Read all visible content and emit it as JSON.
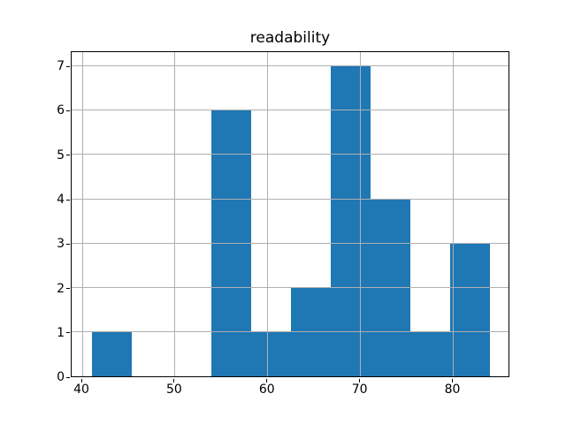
{
  "chart_data": {
    "type": "bar",
    "subtype": "histogram",
    "title": "readability",
    "xlabel": "",
    "ylabel": "",
    "bin_edges": [
      41.0,
      45.3,
      49.6,
      53.9,
      58.2,
      62.5,
      66.8,
      71.1,
      75.4,
      79.7,
      84.0
    ],
    "counts": [
      1,
      0,
      0,
      6,
      1,
      2,
      7,
      4,
      1,
      3
    ],
    "xlim": [
      38.85,
      86.15
    ],
    "ylim": [
      0,
      7.35
    ],
    "x_ticks": [
      40,
      50,
      60,
      70,
      80
    ],
    "y_ticks": [
      0,
      1,
      2,
      3,
      4,
      5,
      6,
      7
    ],
    "grid": true,
    "legend": "none",
    "colors": {
      "bar": "#1f77b4",
      "grid": "#b0b0b0",
      "spine": "#000000",
      "text": "#000000",
      "background": "#ffffff"
    }
  }
}
